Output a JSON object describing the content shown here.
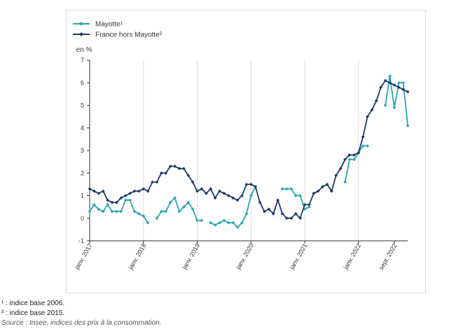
{
  "chart_data": {
    "type": "line",
    "ylabel": "en %",
    "ylim": [
      -1,
      7
    ],
    "yticks": [
      -1,
      0,
      1,
      2,
      3,
      4,
      5,
      6,
      7
    ],
    "x_range": [
      "2017-01",
      "2022-09"
    ],
    "xticks": [
      {
        "x": "2017-01",
        "label": "janv. 2017"
      },
      {
        "x": "2018-01",
        "label": "janv. 2018"
      },
      {
        "x": "2019-01",
        "label": "janv. 2019"
      },
      {
        "x": "2020-01",
        "label": "janv. 2020"
      },
      {
        "x": "2021-01",
        "label": "janv. 2021"
      },
      {
        "x": "2022-01",
        "label": "janv. 2022"
      },
      {
        "x": "2022-09",
        "label": "sept. 2022"
      }
    ],
    "grid": "vertical",
    "legend": "top-left",
    "series": [
      {
        "name": "Mayotte¹",
        "color": "#2aa6b4",
        "points": [
          [
            "2017-01",
            0.3
          ],
          [
            "2017-02",
            0.6
          ],
          [
            "2017-03",
            0.4
          ],
          [
            "2017-04",
            0.3
          ],
          [
            "2017-05",
            0.6
          ],
          [
            "2017-06",
            0.3
          ],
          [
            "2017-07",
            0.3
          ],
          [
            "2017-08",
            0.3
          ],
          [
            "2017-09",
            0.8
          ],
          [
            "2017-10",
            0.8
          ],
          [
            "2017-11",
            0.3
          ],
          [
            "2017-12",
            0.2
          ],
          [
            "2018-01",
            0.1
          ],
          [
            "2018-02",
            -0.2
          ],
          [
            "2018-03",
            null
          ],
          [
            "2018-04",
            0.0
          ],
          [
            "2018-05",
            0.3
          ],
          [
            "2018-06",
            0.3
          ],
          [
            "2018-07",
            0.7
          ],
          [
            "2018-08",
            0.9
          ],
          [
            "2018-09",
            0.3
          ],
          [
            "2018-10",
            0.5
          ],
          [
            "2018-11",
            0.7
          ],
          [
            "2018-12",
            0.4
          ],
          [
            "2019-01",
            -0.1
          ],
          [
            "2019-02",
            -0.1
          ],
          [
            "2019-03",
            null
          ],
          [
            "2019-04",
            -0.2
          ],
          [
            "2019-05",
            -0.3
          ],
          [
            "2019-06",
            -0.2
          ],
          [
            "2019-07",
            -0.1
          ],
          [
            "2019-08",
            -0.2
          ],
          [
            "2019-09",
            -0.2
          ],
          [
            "2019-10",
            -0.4
          ],
          [
            "2019-11",
            -0.2
          ],
          [
            "2019-12",
            0.2
          ],
          [
            "2020-01",
            1.0
          ],
          [
            "2020-02",
            1.4
          ],
          [
            "2020-03",
            null
          ],
          [
            "2020-04",
            null
          ],
          [
            "2020-05",
            null
          ],
          [
            "2020-06",
            null
          ],
          [
            "2020-07",
            null
          ],
          [
            "2020-08",
            1.3
          ],
          [
            "2020-09",
            1.3
          ],
          [
            "2020-10",
            1.3
          ],
          [
            "2020-11",
            1.0
          ],
          [
            "2020-12",
            1.0
          ],
          [
            "2021-01",
            0.4
          ],
          [
            "2021-02",
            0.5
          ],
          [
            "2021-03",
            null
          ],
          [
            "2021-04",
            null
          ],
          [
            "2021-05",
            null
          ],
          [
            "2021-06",
            null
          ],
          [
            "2021-07",
            null
          ],
          [
            "2021-08",
            null
          ],
          [
            "2021-09",
            null
          ],
          [
            "2021-10",
            1.6
          ],
          [
            "2021-11",
            2.6
          ],
          [
            "2021-12",
            2.6
          ],
          [
            "2022-01",
            2.9
          ],
          [
            "2022-02",
            3.2
          ],
          [
            "2022-03",
            3.2
          ],
          [
            "2022-04",
            null
          ],
          [
            "2022-05",
            null
          ],
          [
            "2022-06",
            null
          ],
          [
            "2022-07",
            5.0
          ],
          [
            "2022-08",
            6.3
          ],
          [
            "2022-09",
            4.9
          ],
          [
            "2022-10",
            6.0
          ],
          [
            "2022-11",
            6.0
          ],
          [
            "2022-12",
            4.1
          ]
        ]
      },
      {
        "name": "France hors Mayotte²",
        "color": "#1e3a68",
        "points": [
          [
            "2017-01",
            1.3
          ],
          [
            "2017-02",
            1.2
          ],
          [
            "2017-03",
            1.1
          ],
          [
            "2017-04",
            1.2
          ],
          [
            "2017-05",
            0.8
          ],
          [
            "2017-06",
            0.7
          ],
          [
            "2017-07",
            0.7
          ],
          [
            "2017-08",
            0.9
          ],
          [
            "2017-09",
            1.0
          ],
          [
            "2017-10",
            1.1
          ],
          [
            "2017-11",
            1.2
          ],
          [
            "2017-12",
            1.2
          ],
          [
            "2018-01",
            1.3
          ],
          [
            "2018-02",
            1.2
          ],
          [
            "2018-03",
            1.6
          ],
          [
            "2018-04",
            1.6
          ],
          [
            "2018-05",
            2.0
          ],
          [
            "2018-06",
            2.0
          ],
          [
            "2018-07",
            2.3
          ],
          [
            "2018-08",
            2.3
          ],
          [
            "2018-09",
            2.2
          ],
          [
            "2018-10",
            2.2
          ],
          [
            "2018-11",
            1.9
          ],
          [
            "2018-12",
            1.6
          ],
          [
            "2019-01",
            1.2
          ],
          [
            "2019-02",
            1.3
          ],
          [
            "2019-03",
            1.1
          ],
          [
            "2019-04",
            1.3
          ],
          [
            "2019-05",
            0.9
          ],
          [
            "2019-06",
            1.2
          ],
          [
            "2019-07",
            1.1
          ],
          [
            "2019-08",
            1.0
          ],
          [
            "2019-09",
            0.9
          ],
          [
            "2019-10",
            0.8
          ],
          [
            "2019-11",
            1.0
          ],
          [
            "2019-12",
            1.5
          ],
          [
            "2020-01",
            1.5
          ],
          [
            "2020-02",
            1.4
          ],
          [
            "2020-03",
            0.7
          ],
          [
            "2020-04",
            0.3
          ],
          [
            "2020-05",
            0.4
          ],
          [
            "2020-06",
            0.2
          ],
          [
            "2020-07",
            0.8
          ],
          [
            "2020-08",
            0.2
          ],
          [
            "2020-09",
            0.0
          ],
          [
            "2020-10",
            0.0
          ],
          [
            "2020-11",
            0.2
          ],
          [
            "2020-12",
            0.0
          ],
          [
            "2021-01",
            0.6
          ],
          [
            "2021-02",
            0.6
          ],
          [
            "2021-03",
            1.1
          ],
          [
            "2021-04",
            1.2
          ],
          [
            "2021-05",
            1.4
          ],
          [
            "2021-06",
            1.5
          ],
          [
            "2021-07",
            1.2
          ],
          [
            "2021-08",
            1.9
          ],
          [
            "2021-09",
            2.2
          ],
          [
            "2021-10",
            2.6
          ],
          [
            "2021-11",
            2.8
          ],
          [
            "2021-12",
            2.8
          ],
          [
            "2022-01",
            2.9
          ],
          [
            "2022-02",
            3.6
          ],
          [
            "2022-03",
            4.5
          ],
          [
            "2022-04",
            4.8
          ],
          [
            "2022-05",
            5.2
          ],
          [
            "2022-06",
            5.8
          ],
          [
            "2022-07",
            6.1
          ],
          [
            "2022-08",
            6.0
          ],
          [
            "2022-09",
            5.9
          ],
          [
            "2022-10",
            5.8
          ],
          [
            "2022-11",
            5.7
          ],
          [
            "2022-12",
            5.6
          ]
        ]
      }
    ]
  },
  "notes": {
    "note1": "¹ : indice base 2006.",
    "note2": "² : indice base 2015.",
    "source": "Source : Insee, indices des prix à la consommation."
  }
}
